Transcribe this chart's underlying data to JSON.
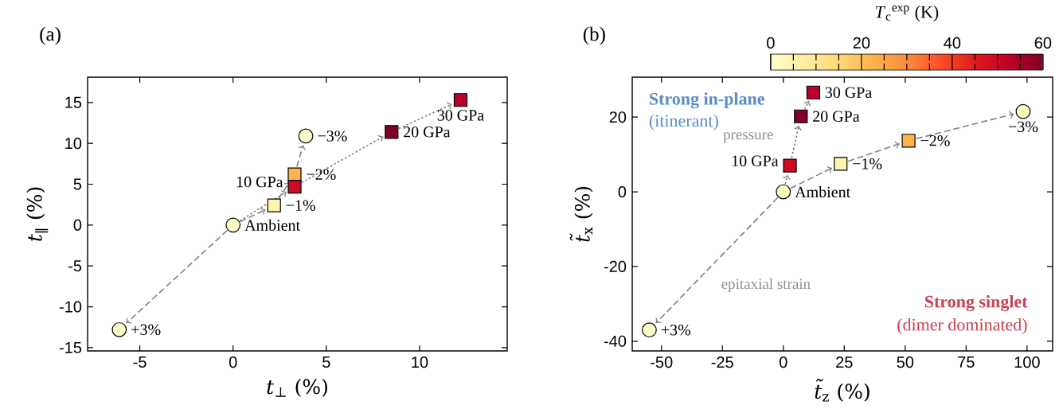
{
  "chart_data": [
    {
      "type": "scatter",
      "title": "(a)",
      "xlabel": "*t*$_{⊥}$ (%)",
      "ylabel": "*t*$_{∥}$ (%)",
      "xlim": [
        -7.8,
        14.7
      ],
      "ylim": [
        -15.4,
        18.1
      ],
      "xticks": [
        -5,
        0,
        5,
        10
      ],
      "yticks": [
        -15,
        -10,
        -5,
        0,
        5,
        10,
        15
      ],
      "series": [
        {
          "marker": "circle",
          "x": [
            0,
            -6.1,
            3.9
          ],
          "values": [
            0,
            -12.8,
            10.9
          ],
          "colors": [
            "#ffffcc",
            "#ffffcc",
            "#ffffcc"
          ]
        },
        {
          "marker": "square",
          "x": [
            2.2,
            3.3,
            3.3,
            8.5,
            12.2
          ],
          "values": [
            2.4,
            6.2,
            4.7,
            11.4,
            15.3
          ],
          "colors": [
            "#fff3b0",
            "#fdb44e",
            "#cc0a22",
            "#800026",
            "#b8002a"
          ]
        }
      ],
      "annotations": [
        {
          "text": "Ambient",
          "x": 0,
          "y": 0
        },
        {
          "text": "+3%",
          "x": -6.1,
          "y": -12.8
        },
        {
          "text": "−1%",
          "x": 2.2,
          "y": 2.4
        },
        {
          "text": "−2%",
          "x": 3.3,
          "y": 6.2
        },
        {
          "text": "−3%",
          "x": 3.9,
          "y": 10.9
        },
        {
          "text": "10 GPa",
          "x": 3.3,
          "y": 4.7
        },
        {
          "text": "20 GPa",
          "x": 8.5,
          "y": 11.4
        },
        {
          "text": "30 GPa",
          "x": 12.2,
          "y": 15.3
        }
      ]
    },
    {
      "type": "scatter",
      "title": "(b)",
      "xlabel": "*t̃*$_{z}$ (%)",
      "ylabel": "*t̃*$_{x}$ (%)",
      "xlim": [
        -62,
        110.5
      ],
      "ylim": [
        -42.6,
        30.7
      ],
      "xticks": [
        -50,
        -25,
        0,
        25,
        50,
        75,
        100
      ],
      "yticks": [
        -40,
        -20,
        0,
        20
      ],
      "clabel": "*T*$_{c}$$^{exp}$ (K)",
      "clim": [
        0,
        60
      ],
      "cticks": [
        0,
        20,
        40,
        60
      ],
      "series": [
        {
          "marker": "circle",
          "x": [
            0,
            -55,
            98.4
          ],
          "values": [
            0,
            -37,
            21.5
          ],
          "colors": [
            "#ffffcc",
            "#ffffcc",
            "#ffffcc"
          ]
        },
        {
          "marker": "square",
          "x": [
            23.5,
            51.4,
            2.7,
            7.2,
            12.3
          ],
          "values": [
            7.5,
            13.7,
            7.0,
            20.2,
            26.6
          ],
          "colors": [
            "#fff3b0",
            "#fdb44e",
            "#cc0a22",
            "#800026",
            "#b8002a"
          ]
        }
      ],
      "annotations": [
        {
          "text": "Ambient",
          "x": 0,
          "y": 0
        },
        {
          "text": "+3%",
          "x": -55,
          "y": -37
        },
        {
          "text": "−1%",
          "x": 23.5,
          "y": 7.5
        },
        {
          "text": "−2%",
          "x": 51.4,
          "y": 13.7
        },
        {
          "text": "−3%",
          "x": 98.4,
          "y": 21.5
        },
        {
          "text": "10 GPa",
          "x": 2.7,
          "y": 7.0
        },
        {
          "text": "20 GPa",
          "x": 7.2,
          "y": 20.2
        },
        {
          "text": "30 GPa",
          "x": 12.3,
          "y": 26.6
        },
        "Strong in-plane",
        "(itinerant)",
        "pressure",
        "epitaxial strain",
        "Strong singlet",
        "(dimer dominated)"
      ]
    }
  ]
}
